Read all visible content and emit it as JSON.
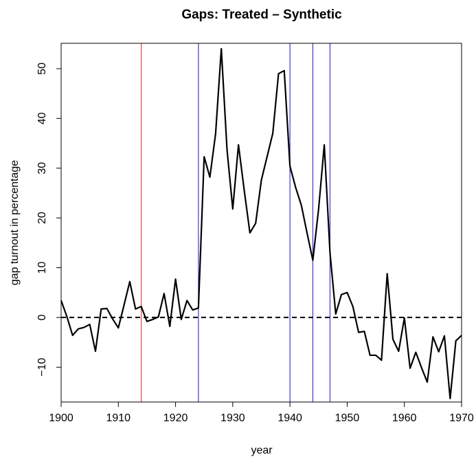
{
  "chart_data": {
    "type": "line",
    "title": "Gaps: Treated – Synthetic",
    "x_label": "year",
    "y_label": "gap turnout in percentage",
    "x": [
      1900,
      1901,
      1902,
      1903,
      1904,
      1905,
      1906,
      1907,
      1908,
      1909,
      1910,
      1911,
      1912,
      1913,
      1914,
      1915,
      1916,
      1917,
      1918,
      1919,
      1920,
      1921,
      1922,
      1923,
      1924,
      1925,
      1926,
      1927,
      1928,
      1929,
      1930,
      1931,
      1932,
      1933,
      1934,
      1935,
      1936,
      1937,
      1938,
      1939,
      1940,
      1941,
      1942,
      1943,
      1944,
      1945,
      1946,
      1947,
      1948,
      1949,
      1950,
      1951,
      1952,
      1953,
      1954,
      1955,
      1956,
      1957,
      1958,
      1959,
      1960,
      1961,
      1962,
      1963,
      1964,
      1965,
      1966,
      1967,
      1968,
      1969,
      1970
    ],
    "values": [
      3.4,
      0.2,
      -3.6,
      -2.3,
      -2.0,
      -1.4,
      -6.8,
      1.7,
      1.8,
      -0.3,
      -2.1,
      2.5,
      7.2,
      1.7,
      2.2,
      -0.8,
      -0.4,
      0.1,
      4.8,
      -1.8,
      7.7,
      -0.4,
      3.4,
      1.5,
      1.9,
      32.3,
      28.2,
      36.9,
      54.0,
      33.7,
      21.8,
      34.7,
      25.6,
      17.0,
      18.9,
      27.6,
      32.3,
      37.0,
      49.0,
      49.6,
      30.4,
      26.1,
      22.5,
      16.9,
      11.5,
      21.7,
      34.7,
      13.0,
      0.7,
      4.6,
      5.0,
      2.2,
      -3.0,
      -2.8,
      -7.6,
      -7.6,
      -8.6,
      8.8,
      -4.4,
      -6.8,
      -0.1,
      -10.2,
      -7.0,
      -10.1,
      -13.0,
      -3.9,
      -6.9,
      -3.7,
      -16.3,
      -4.7,
      -3.6
    ],
    "color": "#000000",
    "xlim": [
      1900,
      1970
    ],
    "ylim": [
      -17,
      55.1
    ],
    "xticks": [
      1900,
      1910,
      1920,
      1930,
      1940,
      1950,
      1960,
      1970
    ],
    "yticks": [
      {
        "value": -10,
        "label": "−10"
      },
      0,
      10,
      20,
      30,
      40,
      50
    ],
    "reference_line": 0,
    "vlines": [
      {
        "x": 1914,
        "color": "#e0443c"
      },
      {
        "x": 1924,
        "color": "#3a3acf"
      },
      {
        "x": 1940,
        "color": "#3a3acf"
      },
      {
        "x": 1944,
        "color": "#3a3acf"
      },
      {
        "x": 1947,
        "color": "#3a3acf"
      }
    ]
  }
}
